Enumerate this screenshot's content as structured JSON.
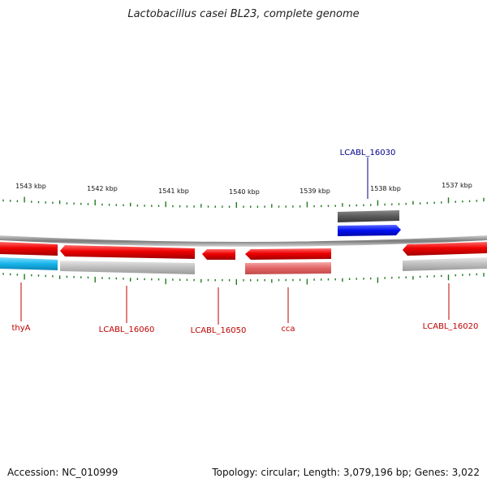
{
  "title": "Lactobacillus casei BL23, complete genome",
  "footer": {
    "accession": "Accession: NC_010999",
    "stats": "Topology: circular; Length: 3,079,196 bp; Genes: 3,022"
  },
  "colors": {
    "forward_gene": "#1010e0",
    "reverse_gene": "#e00000",
    "rrna": "#17b6ea",
    "tick": "#1f7a1f",
    "backbone": "#777777",
    "label_forward": "#00008b",
    "label_reverse": "#c00000"
  },
  "ruler": {
    "labels": [
      "1543 kbp",
      "1542 kbp",
      "1541 kbp",
      "1540 kbp",
      "1539 kbp",
      "1538 kbp",
      "1537 kbp"
    ]
  },
  "genes": [
    {
      "name": "LCABL_16030",
      "strand": "forward"
    },
    {
      "name": "thyA",
      "strand": "reverse"
    },
    {
      "name": "LCABL_16060",
      "strand": "reverse"
    },
    {
      "name": "LCABL_16050",
      "strand": "reverse"
    },
    {
      "name": "cca",
      "strand": "reverse"
    },
    {
      "name": "LCABL_16020",
      "strand": "reverse"
    }
  ]
}
